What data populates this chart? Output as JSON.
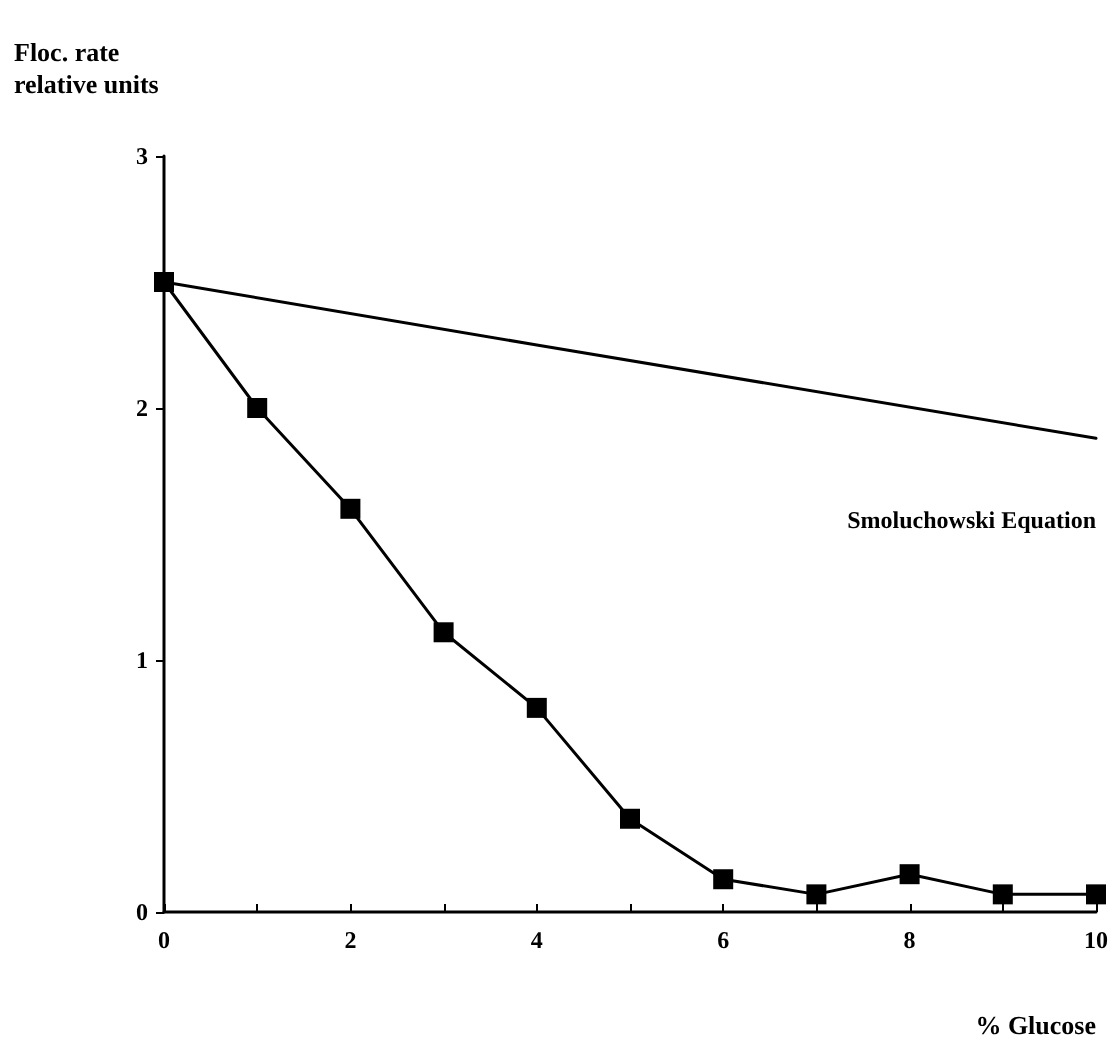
{
  "chart_data": {
    "type": "line",
    "xlabel": "% Glucose",
    "ylabel": "Floc. rate\nrelative units",
    "grid": false,
    "legend": false,
    "xlim": [
      0,
      10
    ],
    "xticks": [
      0,
      {
        "value": 1,
        "label": null
      },
      2,
      {
        "value": 3,
        "label": null
      },
      4,
      {
        "value": 5,
        "label": null
      },
      6,
      {
        "value": 7,
        "label": null
      },
      8,
      {
        "value": 9,
        "label": null
      },
      10
    ],
    "ylim": [
      0,
      3
    ],
    "yticks": [
      0,
      1,
      2,
      3
    ],
    "series": [
      {
        "color": "#000000",
        "marker": "square",
        "x": [
          0,
          1,
          2,
          3,
          4,
          5,
          6,
          7,
          8,
          9,
          10
        ],
        "values": [
          2.5,
          2.0,
          1.6,
          1.11,
          0.81,
          0.37,
          0.13,
          0.07,
          0.15,
          0.07,
          0.07
        ]
      },
      {
        "name": "Smoluchowski Equation",
        "color": "#000000",
        "marker": "none",
        "x": [
          0,
          4,
          10
        ],
        "values": [
          2.5,
          2.25,
          1.88
        ]
      }
    ]
  }
}
